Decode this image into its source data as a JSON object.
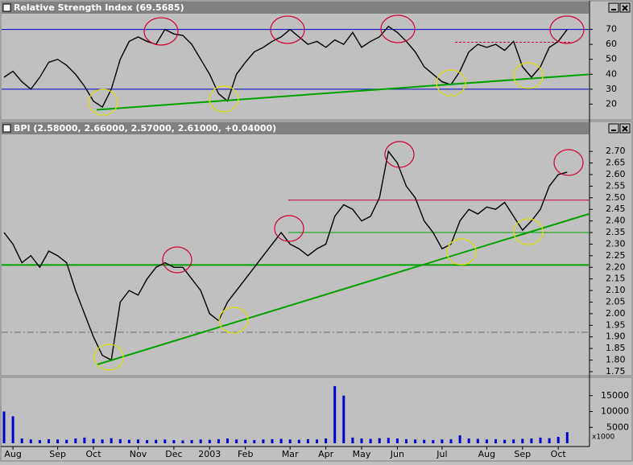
{
  "chart_data": {
    "type": "stock-panels",
    "categories": [
      null,
      "Aug",
      null,
      null,
      null,
      null,
      "Sep",
      null,
      null,
      null,
      "Oct",
      null,
      null,
      null,
      null,
      "Nov",
      null,
      null,
      null,
      "Dec",
      null,
      null,
      null,
      "2003",
      null,
      null,
      null,
      "Feb",
      null,
      null,
      null,
      null,
      "Mar",
      null,
      null,
      null,
      "Apr",
      null,
      null,
      null,
      "May",
      null,
      null,
      null,
      "Jun",
      null,
      null,
      null,
      null,
      "Jul",
      null,
      null,
      null,
      null,
      "Aug",
      null,
      null,
      null,
      "Sep",
      null,
      null,
      null,
      "Oct",
      null
    ],
    "panels": [
      {
        "type": "line",
        "title": "Relative Strength Index (69.5685)",
        "ylim": [
          10,
          80
        ],
        "yticks": [
          20,
          30,
          40,
          50,
          60,
          70
        ],
        "series": [
          {
            "color": "#000000",
            "values": [
              38,
              42,
              35,
              30,
              38,
              48,
              50,
              46,
              40,
              32,
              22,
              18,
              30,
              50,
              62,
              65,
              62,
              60,
              70,
              67,
              66,
              60,
              50,
              40,
              27,
              22,
              40,
              48,
              55,
              58,
              62,
              65,
              70,
              65,
              60,
              62,
              58,
              63,
              60,
              68,
              58,
              62,
              65,
              72,
              68,
              62,
              55,
              45,
              40,
              35,
              33,
              42,
              55,
              60,
              58,
              60,
              56,
              62,
              45,
              38,
              45,
              58,
              62,
              70
            ]
          }
        ],
        "hlines": [
          {
            "value": 70,
            "color": "#0000c0"
          },
          {
            "value": 30,
            "color": "#0000c0"
          },
          {
            "value": 61.4,
            "color": "#d00040",
            "dashed": true
          }
        ],
        "trendlines": [
          {
            "color": "#00a000",
            "values": [
              16.2,
              39.9
            ]
          }
        ]
      },
      {
        "type": "line",
        "title": "BPI (2.58000, 2.66000, 2.57000, 2.61000, +0.04000)",
        "ylim": [
          1.736,
          2.77
        ],
        "yticks": [
          {
            "value": 2.7,
            "label": "2.70"
          },
          2.65,
          {
            "value": 2.6,
            "label": "2.60"
          },
          2.55,
          {
            "value": 2.5,
            "label": "2.50"
          },
          2.45,
          {
            "value": 2.4,
            "label": "2.40"
          },
          2.35,
          {
            "value": 2.3,
            "label": "2.30"
          },
          2.25,
          {
            "value": 2.2,
            "label": "2.20"
          },
          2.15,
          {
            "value": 2.1,
            "label": "2.10"
          },
          2.05,
          {
            "value": 2,
            "label": "2.00"
          },
          1.95,
          {
            "value": 1.9,
            "label": "1.90"
          },
          1.85,
          {
            "value": 1.8,
            "label": "1.80"
          },
          1.75
        ],
        "series": [
          {
            "color": "#000000",
            "values": [
              2.35,
              2.3,
              2.22,
              2.25,
              2.2,
              2.27,
              2.25,
              2.22,
              2.1,
              2.0,
              1.9,
              1.82,
              1.8,
              2.05,
              2.1,
              2.08,
              2.15,
              2.2,
              2.22,
              2.2,
              2.2,
              2.15,
              2.1,
              2.0,
              1.97,
              2.05,
              2.1,
              2.15,
              2.2,
              2.25,
              2.3,
              2.35,
              2.3,
              2.28,
              2.25,
              2.28,
              2.3,
              2.42,
              2.47,
              2.45,
              2.4,
              2.42,
              2.5,
              2.7,
              2.65,
              2.55,
              2.5,
              2.4,
              2.35,
              2.28,
              2.3,
              2.4,
              2.45,
              2.43,
              2.46,
              2.45,
              2.48,
              2.42,
              2.36,
              2.4,
              2.45,
              2.55,
              2.6,
              2.61
            ]
          }
        ],
        "hlines": [
          {
            "value": 2.49,
            "color": "#c0003c",
            "partial": true
          },
          {
            "value": 2.35,
            "color": "#00a000",
            "partial": true
          },
          {
            "value": 2.21,
            "color": "#00a000",
            "thick": true
          },
          {
            "value": 1.92,
            "color": "#707070",
            "dashed": true
          }
        ],
        "trendlines": [
          {
            "color": "#00a000",
            "values": [
              1.78,
              2.43
            ]
          }
        ]
      },
      {
        "type": "bar",
        "unit_label": "x1000",
        "ylim": [
          0,
          20000
        ],
        "yticks": [
          5000,
          10000,
          15000
        ],
        "series": [
          {
            "color": "#0000d0",
            "values": [
              10000,
              8500,
              1500,
              1200,
              1000,
              1300,
              1200,
              1100,
              1500,
              1800,
              1400,
              1200,
              1600,
              1300,
              1100,
              1200,
              1000,
              1100,
              1200,
              1000,
              900,
              1000,
              1200,
              1100,
              1300,
              1500,
              1200,
              1100,
              1000,
              1200,
              1300,
              1400,
              1200,
              1100,
              1300,
              1200,
              1500,
              18000,
              15000,
              1800,
              1500,
              1400,
              1600,
              1700,
              1500,
              1300,
              1200,
              1100,
              1000,
              1200,
              1300,
              2500,
              1500,
              1400,
              1200,
              1300,
              1100,
              1200,
              1400,
              1500,
              1800,
              1600,
              2000,
              3500
            ]
          }
        ]
      }
    ]
  }
}
